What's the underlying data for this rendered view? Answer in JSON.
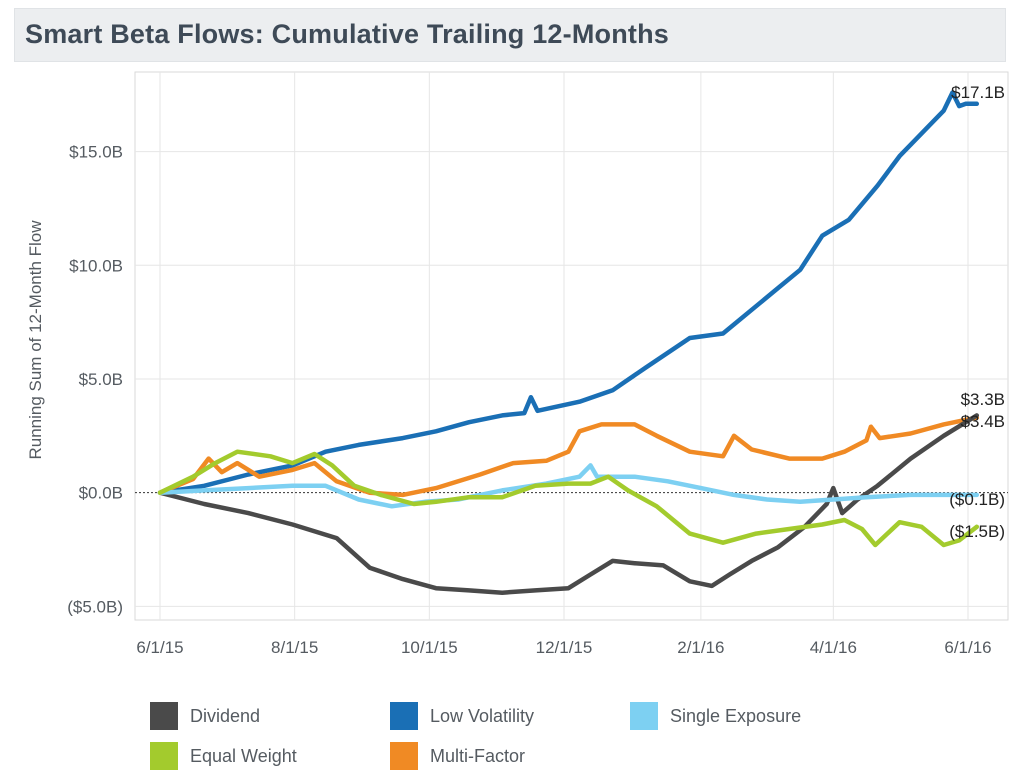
{
  "header": {
    "title": "Smart Beta Flows: Cumulative Trailing 12-Months"
  },
  "chart_data": {
    "type": "line",
    "title": "Smart Beta Flows: Cumulative Trailing 12-Months",
    "xlabel": "",
    "ylabel": "Running Sum of 12-Month Flow",
    "x_ticks": [
      "6/1/15",
      "8/1/15",
      "10/1/15",
      "12/1/15",
      "2/1/16",
      "4/1/16",
      "6/1/16"
    ],
    "x_tick_days": [
      0,
      61,
      122,
      183,
      245,
      305,
      366
    ],
    "xlim_days": [
      -20,
      375
    ],
    "y_ticks": [
      -5,
      0,
      5,
      10,
      15
    ],
    "y_tick_labels": [
      "($5.0B)",
      "$0.0B",
      "$5.0B",
      "$10.0B",
      "$15.0B"
    ],
    "ylim": [
      -5.6,
      18.5
    ],
    "units": "Billions USD",
    "zero_reference_line": true,
    "grid": true,
    "legend_position": "bottom",
    "series": [
      {
        "name": "Low Volatility",
        "color": "#1a6fb5",
        "end_label": "$17.1B",
        "points": [
          [
            0,
            0
          ],
          [
            20,
            0.3
          ],
          [
            40,
            0.8
          ],
          [
            60,
            1.2
          ],
          [
            75,
            1.8
          ],
          [
            90,
            2.1
          ],
          [
            110,
            2.4
          ],
          [
            125,
            2.7
          ],
          [
            140,
            3.1
          ],
          [
            155,
            3.4
          ],
          [
            165,
            3.5
          ],
          [
            168,
            4.2
          ],
          [
            171,
            3.6
          ],
          [
            190,
            4.0
          ],
          [
            205,
            4.5
          ],
          [
            220,
            5.5
          ],
          [
            240,
            6.8
          ],
          [
            255,
            7.0
          ],
          [
            270,
            8.2
          ],
          [
            280,
            9.0
          ],
          [
            290,
            9.8
          ],
          [
            300,
            11.3
          ],
          [
            312,
            12.0
          ],
          [
            325,
            13.5
          ],
          [
            335,
            14.8
          ],
          [
            345,
            15.8
          ],
          [
            355,
            16.8
          ],
          [
            359,
            17.6
          ],
          [
            362,
            17.0
          ],
          [
            365,
            17.1
          ],
          [
            370,
            17.1
          ]
        ]
      },
      {
        "name": "Multi-Factor",
        "color": "#f08a24",
        "end_label": "$3.3B",
        "points": [
          [
            0,
            0
          ],
          [
            15,
            0.6
          ],
          [
            22,
            1.5
          ],
          [
            28,
            0.9
          ],
          [
            35,
            1.3
          ],
          [
            45,
            0.7
          ],
          [
            60,
            1.0
          ],
          [
            70,
            1.3
          ],
          [
            80,
            0.5
          ],
          [
            95,
            0.0
          ],
          [
            110,
            -0.1
          ],
          [
            125,
            0.2
          ],
          [
            145,
            0.8
          ],
          [
            160,
            1.3
          ],
          [
            175,
            1.4
          ],
          [
            185,
            1.8
          ],
          [
            190,
            2.7
          ],
          [
            200,
            3.0
          ],
          [
            215,
            3.0
          ],
          [
            225,
            2.5
          ],
          [
            240,
            1.8
          ],
          [
            255,
            1.6
          ],
          [
            260,
            2.5
          ],
          [
            268,
            1.9
          ],
          [
            285,
            1.5
          ],
          [
            300,
            1.5
          ],
          [
            310,
            1.8
          ],
          [
            320,
            2.3
          ],
          [
            322,
            2.9
          ],
          [
            326,
            2.4
          ],
          [
            340,
            2.6
          ],
          [
            355,
            3.0
          ],
          [
            370,
            3.3
          ]
        ]
      },
      {
        "name": "Dividend",
        "color": "#4a4a4a",
        "end_label": "$3.4B",
        "points": [
          [
            0,
            0
          ],
          [
            20,
            -0.5
          ],
          [
            40,
            -0.9
          ],
          [
            60,
            -1.4
          ],
          [
            80,
            -2.0
          ],
          [
            95,
            -3.3
          ],
          [
            110,
            -3.8
          ],
          [
            125,
            -4.2
          ],
          [
            140,
            -4.3
          ],
          [
            155,
            -4.4
          ],
          [
            170,
            -4.3
          ],
          [
            185,
            -4.2
          ],
          [
            195,
            -3.6
          ],
          [
            205,
            -3.0
          ],
          [
            215,
            -3.1
          ],
          [
            228,
            -3.2
          ],
          [
            240,
            -3.9
          ],
          [
            250,
            -4.1
          ],
          [
            258,
            -3.6
          ],
          [
            268,
            -3.0
          ],
          [
            280,
            -2.4
          ],
          [
            292,
            -1.5
          ],
          [
            302,
            -0.5
          ],
          [
            305,
            0.2
          ],
          [
            309,
            -0.9
          ],
          [
            316,
            -0.3
          ],
          [
            325,
            0.3
          ],
          [
            340,
            1.5
          ],
          [
            355,
            2.5
          ],
          [
            370,
            3.4
          ]
        ]
      },
      {
        "name": "Single Exposure",
        "color": "#7dd0f2",
        "end_label": "($0.1B)",
        "points": [
          [
            0,
            0
          ],
          [
            20,
            0.1
          ],
          [
            40,
            0.2
          ],
          [
            60,
            0.3
          ],
          [
            75,
            0.3
          ],
          [
            90,
            -0.3
          ],
          [
            105,
            -0.6
          ],
          [
            120,
            -0.4
          ],
          [
            135,
            -0.3
          ],
          [
            155,
            0.1
          ],
          [
            175,
            0.4
          ],
          [
            190,
            0.7
          ],
          [
            195,
            1.2
          ],
          [
            198,
            0.7
          ],
          [
            215,
            0.7
          ],
          [
            230,
            0.5
          ],
          [
            245,
            0.2
          ],
          [
            260,
            -0.1
          ],
          [
            275,
            -0.3
          ],
          [
            290,
            -0.4
          ],
          [
            305,
            -0.3
          ],
          [
            320,
            -0.2
          ],
          [
            340,
            -0.1
          ],
          [
            355,
            -0.1
          ],
          [
            370,
            -0.1
          ]
        ]
      },
      {
        "name": "Equal Weight",
        "color": "#a3cb2d",
        "end_label": "($1.5B)",
        "points": [
          [
            0,
            0
          ],
          [
            15,
            0.7
          ],
          [
            25,
            1.3
          ],
          [
            35,
            1.8
          ],
          [
            50,
            1.6
          ],
          [
            60,
            1.3
          ],
          [
            70,
            1.7
          ],
          [
            78,
            1.2
          ],
          [
            88,
            0.3
          ],
          [
            100,
            -0.1
          ],
          [
            115,
            -0.5
          ],
          [
            125,
            -0.4
          ],
          [
            140,
            -0.2
          ],
          [
            155,
            -0.2
          ],
          [
            170,
            0.3
          ],
          [
            185,
            0.4
          ],
          [
            195,
            0.4
          ],
          [
            203,
            0.7
          ],
          [
            212,
            0.1
          ],
          [
            225,
            -0.6
          ],
          [
            240,
            -1.8
          ],
          [
            255,
            -2.2
          ],
          [
            270,
            -1.8
          ],
          [
            285,
            -1.6
          ],
          [
            300,
            -1.4
          ],
          [
            310,
            -1.2
          ],
          [
            318,
            -1.6
          ],
          [
            324,
            -2.3
          ],
          [
            335,
            -1.3
          ],
          [
            345,
            -1.5
          ],
          [
            355,
            -2.3
          ],
          [
            362,
            -2.1
          ],
          [
            370,
            -1.5
          ]
        ]
      }
    ]
  },
  "legend": {
    "items": [
      {
        "label": "Dividend",
        "color": "#4a4a4a"
      },
      {
        "label": "Low Volatility",
        "color": "#1a6fb5"
      },
      {
        "label": "Single Exposure",
        "color": "#7dd0f2"
      },
      {
        "label": "Equal Weight",
        "color": "#a3cb2d"
      },
      {
        "label": "Multi-Factor",
        "color": "#f08a24"
      }
    ]
  }
}
